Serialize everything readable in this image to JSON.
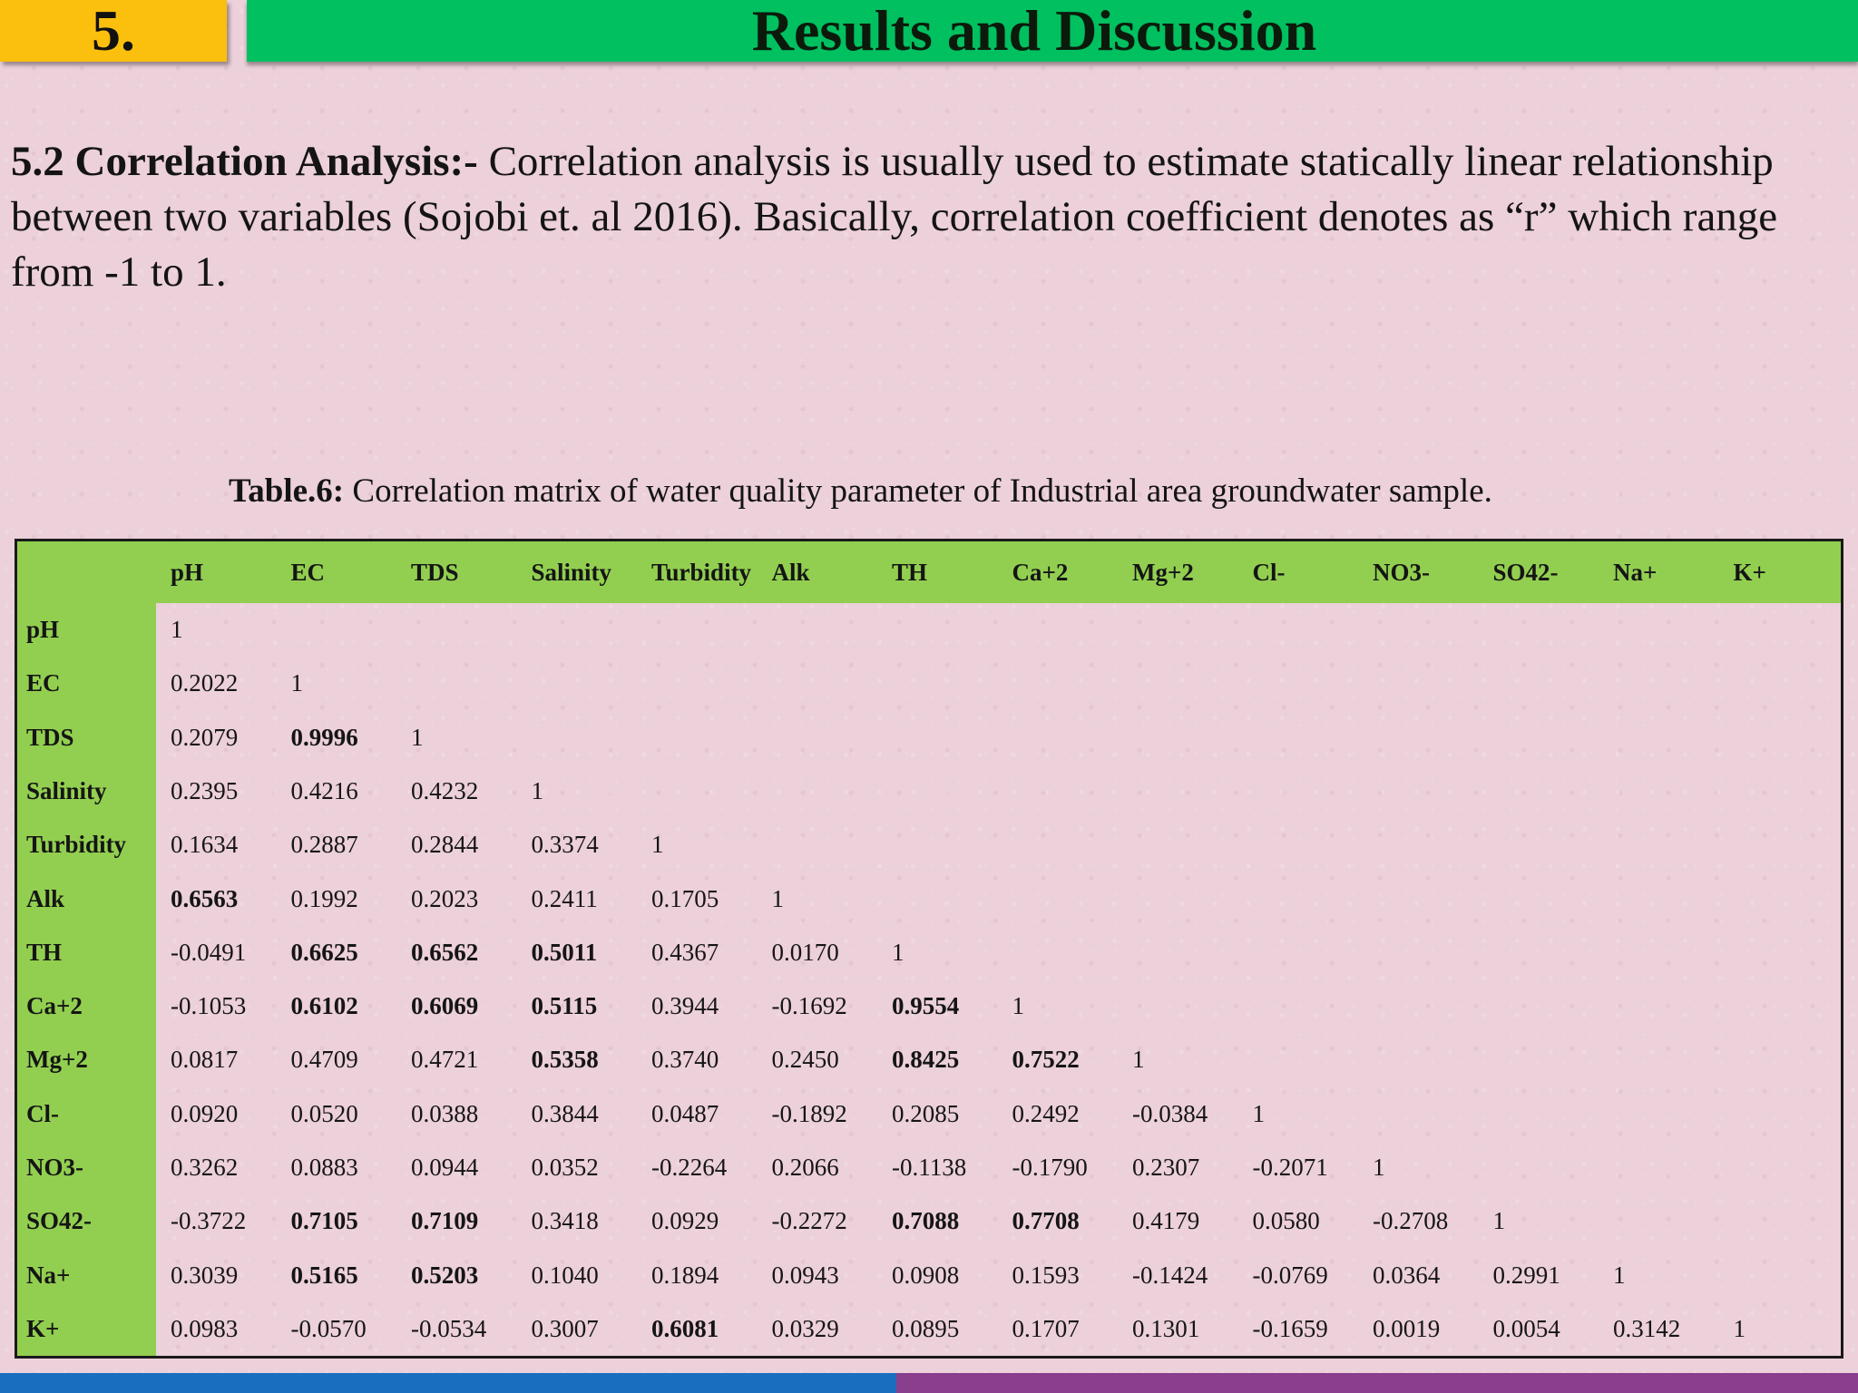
{
  "header": {
    "section_number": "5.",
    "title": "Results and Discussion",
    "colors": {
      "badge": "#fbbf0d",
      "title_bar": "#00c060",
      "table_header": "#92cf50",
      "footer_left": "#1a6ec0",
      "footer_right": "#8a3e8e"
    }
  },
  "intro": {
    "heading": "5.2 Correlation Analysis:- ",
    "text": "Correlation analysis is usually used to estimate statically linear relationship between two variables (Sojobi et. al 2016). Basically, correlation coefficient denotes as “r” which range from -1 to 1."
  },
  "table": {
    "caption_label": "Table.6:",
    "caption_text": " Correlation matrix of water quality parameter of Industrial area groundwater sample.",
    "columns": [
      "pH",
      "EC",
      "TDS",
      "Salinity",
      "Turbidity",
      "Alk",
      "TH",
      "Ca+2",
      "Mg+2",
      "Cl-",
      "NO3-",
      "SO42-",
      "Na+",
      "K+"
    ],
    "rows": [
      {
        "label": "pH",
        "values": [
          "1"
        ],
        "bold": []
      },
      {
        "label": "EC",
        "values": [
          "0.2022",
          "1"
        ],
        "bold": []
      },
      {
        "label": "TDS",
        "values": [
          "0.2079",
          "0.9996",
          "1"
        ],
        "bold": [
          1
        ]
      },
      {
        "label": "Salinity",
        "values": [
          "0.2395",
          "0.4216",
          "0.4232",
          "1"
        ],
        "bold": []
      },
      {
        "label": "Turbidity",
        "values": [
          "0.1634",
          "0.2887",
          "0.2844",
          "0.3374",
          "1"
        ],
        "bold": []
      },
      {
        "label": "Alk",
        "values": [
          "0.6563",
          "0.1992",
          "0.2023",
          "0.2411",
          "0.1705",
          "1"
        ],
        "bold": [
          0
        ]
      },
      {
        "label": "TH",
        "values": [
          "-0.0491",
          "0.6625",
          "0.6562",
          "0.5011",
          "0.4367",
          "0.0170",
          "1"
        ],
        "bold": [
          1,
          2,
          3
        ]
      },
      {
        "label": "Ca+2",
        "values": [
          "-0.1053",
          "0.6102",
          "0.6069",
          "0.5115",
          "0.3944",
          "-0.1692",
          "0.9554",
          "1"
        ],
        "bold": [
          1,
          2,
          3,
          6
        ]
      },
      {
        "label": "Mg+2",
        "values": [
          "0.0817",
          "0.4709",
          "0.4721",
          "0.5358",
          "0.3740",
          "0.2450",
          "0.8425",
          "0.7522",
          "1"
        ],
        "bold": [
          3,
          6,
          7
        ]
      },
      {
        "label": "Cl-",
        "values": [
          "0.0920",
          "0.0520",
          "0.0388",
          "0.3844",
          "0.0487",
          "-0.1892",
          "0.2085",
          "0.2492",
          "-0.0384",
          "1"
        ],
        "bold": []
      },
      {
        "label": "NO3-",
        "values": [
          "0.3262",
          "0.0883",
          "0.0944",
          "0.0352",
          "-0.2264",
          "0.2066",
          "-0.1138",
          "-0.1790",
          "0.2307",
          "-0.2071",
          "1"
        ],
        "bold": []
      },
      {
        "label": "SO42-",
        "values": [
          "-0.3722",
          "0.7105",
          "0.7109",
          "0.3418",
          "0.0929",
          "-0.2272",
          "0.7088",
          "0.7708",
          "0.4179",
          "0.0580",
          "-0.2708",
          "1"
        ],
        "bold": [
          1,
          2,
          6,
          7
        ]
      },
      {
        "label": "Na+",
        "values": [
          "0.3039",
          "0.5165",
          "0.5203",
          "0.1040",
          "0.1894",
          "0.0943",
          "0.0908",
          "0.1593",
          "-0.1424",
          "-0.0769",
          "0.0364",
          "0.2991",
          "1"
        ],
        "bold": [
          1,
          2
        ]
      },
      {
        "label": "K+",
        "values": [
          "0.0983",
          "-0.0570",
          "-0.0534",
          "0.3007",
          "0.6081",
          "0.0329",
          "0.0895",
          "0.1707",
          "0.1301",
          "-0.1659",
          "0.0019",
          "0.0054",
          "0.3142",
          "1"
        ],
        "bold": [
          4
        ]
      }
    ]
  }
}
